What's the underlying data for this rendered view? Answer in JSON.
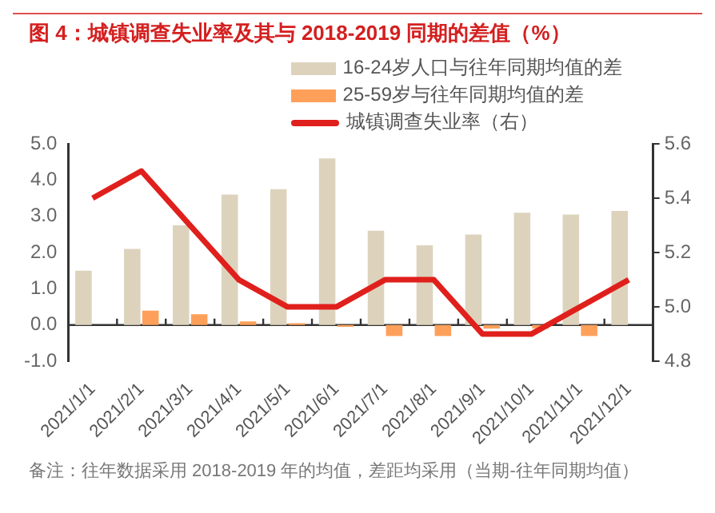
{
  "chart_data": {
    "type": "bar",
    "title": "图 4：城镇调查失业率及其与 2018-2019 同期的差值（%）",
    "categories": [
      "2021/1/1",
      "2021/2/1",
      "2021/3/1",
      "2021/4/1",
      "2021/5/1",
      "2021/6/1",
      "2021/7/1",
      "2021/8/1",
      "2021/9/1",
      "2021/10/1",
      "2021/11/1",
      "2021/12/1"
    ],
    "series": [
      {
        "name": "16-24岁人口与往年同期均值的差",
        "color": "#ddd3bd",
        "values": [
          1.5,
          2.1,
          2.75,
          3.6,
          3.75,
          4.6,
          2.6,
          2.2,
          2.5,
          3.1,
          3.05,
          3.15
        ]
      },
      {
        "name": "25-59岁与往年同期均值的差",
        "color": "#ffa05a",
        "values": [
          0,
          0.4,
          0.3,
          0.1,
          0.05,
          -0.05,
          -0.3,
          -0.3,
          -0.1,
          -0.1,
          -0.3,
          0
        ]
      },
      {
        "name": "城镇调查失业率（右）",
        "type": "line",
        "axis": "y2",
        "color": "#e0201c",
        "values": [
          5.4,
          5.5,
          5.3,
          5.1,
          5.0,
          5.0,
          5.1,
          5.1,
          4.9,
          4.9,
          5.0,
          5.1
        ]
      }
    ],
    "ylim": [
      -1,
      5
    ],
    "yticks": [
      {
        "value": -1,
        "label": "-1.0"
      },
      {
        "value": 0,
        "label": "0.0"
      },
      {
        "value": 1,
        "label": "1.0"
      },
      {
        "value": 2,
        "label": "2.0"
      },
      {
        "value": 3,
        "label": "3.0"
      },
      {
        "value": 4,
        "label": "4.0"
      },
      {
        "value": 5,
        "label": "5.0"
      }
    ],
    "y2lim": [
      4.8,
      5.6
    ],
    "y2ticks": [
      4.8,
      {
        "value": 5.0,
        "label": "5.0"
      },
      5.2,
      5.4,
      5.6
    ],
    "grid": false,
    "ref_lines": [
      {
        "axis": "y",
        "value": 0,
        "color": "#333333"
      }
    ],
    "legend": "top right",
    "marker": "none",
    "annotations": [
      "备注：往年数据采用 2018-2019 年的均值，差距均采用（当期-往年同期均值）"
    ]
  }
}
